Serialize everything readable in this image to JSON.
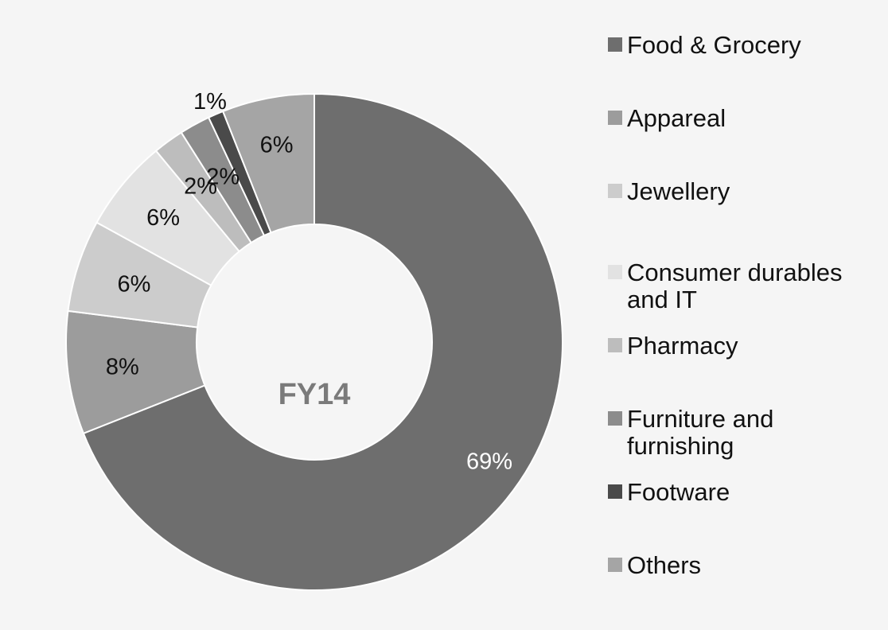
{
  "chart_data": {
    "type": "pie",
    "donut": true,
    "center_label": "FY14",
    "categories": [
      "Food & Grocery",
      "Appareal",
      "Jewellery",
      "Consumer durables and IT",
      "Pharmacy",
      "Furniture and furnishing",
      "Footware",
      "Others"
    ],
    "values": [
      69,
      8,
      6,
      6,
      2,
      2,
      1,
      6
    ],
    "data_labels": [
      "69%",
      "8%",
      "6%",
      "6%",
      "2%",
      "2%",
      "1%",
      "6%"
    ],
    "colors": [
      "#6e6e6e",
      "#9c9c9c",
      "#cccccc",
      "#e2e2e2",
      "#bdbdbd",
      "#8c8c8c",
      "#4a4a4a",
      "#a5a5a5"
    ],
    "legend": {
      "position": "right",
      "entries": [
        "Food & Grocery",
        "Appareal",
        "Jewellery",
        "Consumer durables and IT",
        "Pharmacy",
        "Furniture and furnishing",
        "Footware",
        "Others"
      ]
    },
    "title": "",
    "start_angle_deg": 0,
    "direction": "clockwise"
  }
}
